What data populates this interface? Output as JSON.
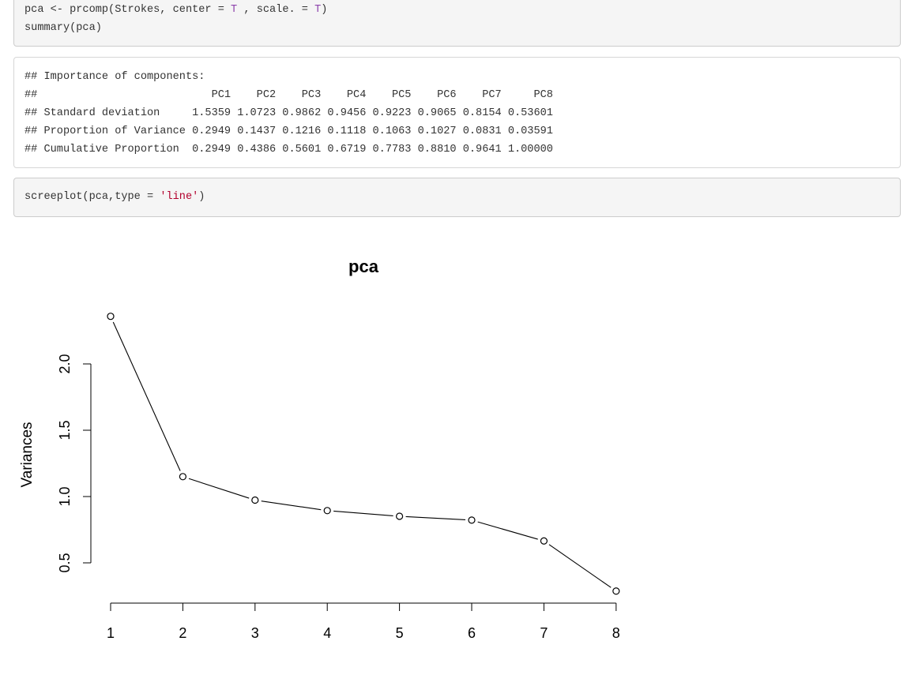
{
  "code1": {
    "line1": {
      "pre": "pca <- prcomp(Strokes, center = ",
      "t1": "T",
      "mid": " , scale. = ",
      "t2": "T",
      "post": ")"
    },
    "line2": "summary(pca)"
  },
  "output": {
    "lines": [
      "## Importance of components:",
      "##                           PC1    PC2    PC3    PC4    PC5    PC6    PC7     PC8",
      "## Standard deviation     1.5359 1.0723 0.9862 0.9456 0.9223 0.9065 0.8154 0.53601",
      "## Proportion of Variance 0.2949 0.1437 0.1216 0.1118 0.1063 0.1027 0.0831 0.03591",
      "## Cumulative Proportion  0.2949 0.4386 0.5601 0.6719 0.7783 0.8810 0.9641 1.00000"
    ]
  },
  "code2": {
    "pre": "screeplot(pca,type = ",
    "str": "'line'",
    "post": ")"
  },
  "colors": {
    "keyword": "#8e44ad",
    "string": "#b3002d",
    "code_bg": "#f5f5f5"
  },
  "chart_data": {
    "type": "line",
    "title": "pca",
    "xlabel": "",
    "ylabel": "Variances",
    "x": [
      1,
      2,
      3,
      4,
      5,
      6,
      7,
      8
    ],
    "values": [
      2.359,
      1.15,
      0.973,
      0.894,
      0.851,
      0.822,
      0.665,
      0.287
    ],
    "y_ticks": [
      "0.5",
      "1.0",
      "1.5",
      "2.0"
    ],
    "x_ticks": [
      "1",
      "2",
      "3",
      "4",
      "5",
      "6",
      "7",
      "8"
    ],
    "ylim": [
      0.5,
      2.0
    ],
    "grid": false,
    "marker": "open-circle"
  }
}
